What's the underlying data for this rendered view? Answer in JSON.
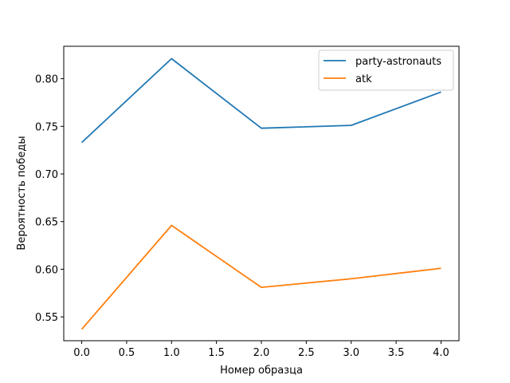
{
  "chart_data": {
    "type": "line",
    "title": "",
    "xlabel": "Номер образца",
    "ylabel": "Вероятность победы",
    "x": [
      0,
      1,
      2,
      3,
      4
    ],
    "xlim": [
      -0.2,
      4.2
    ],
    "ylim": [
      0.525,
      0.834
    ],
    "xticks": [
      0.0,
      0.5,
      1.0,
      1.5,
      2.0,
      2.5,
      3.0,
      3.5,
      4.0
    ],
    "xtick_labels": [
      "0.0",
      "0.5",
      "1.0",
      "1.5",
      "2.0",
      "2.5",
      "3.0",
      "3.5",
      "4.0"
    ],
    "yticks": [
      0.55,
      0.6,
      0.65,
      0.7,
      0.75,
      0.8
    ],
    "ytick_labels": [
      "0.55",
      "0.60",
      "0.65",
      "0.70",
      "0.75",
      "0.80"
    ],
    "grid": false,
    "legend_position": "top-right",
    "series": [
      {
        "name": "party-astronauts",
        "color": "#1f77b4",
        "values": [
          0.733,
          0.821,
          0.748,
          0.751,
          0.786
        ]
      },
      {
        "name": "atk",
        "color": "#ff7f0e",
        "values": [
          0.537,
          0.646,
          0.581,
          0.59,
          0.601
        ]
      }
    ]
  }
}
